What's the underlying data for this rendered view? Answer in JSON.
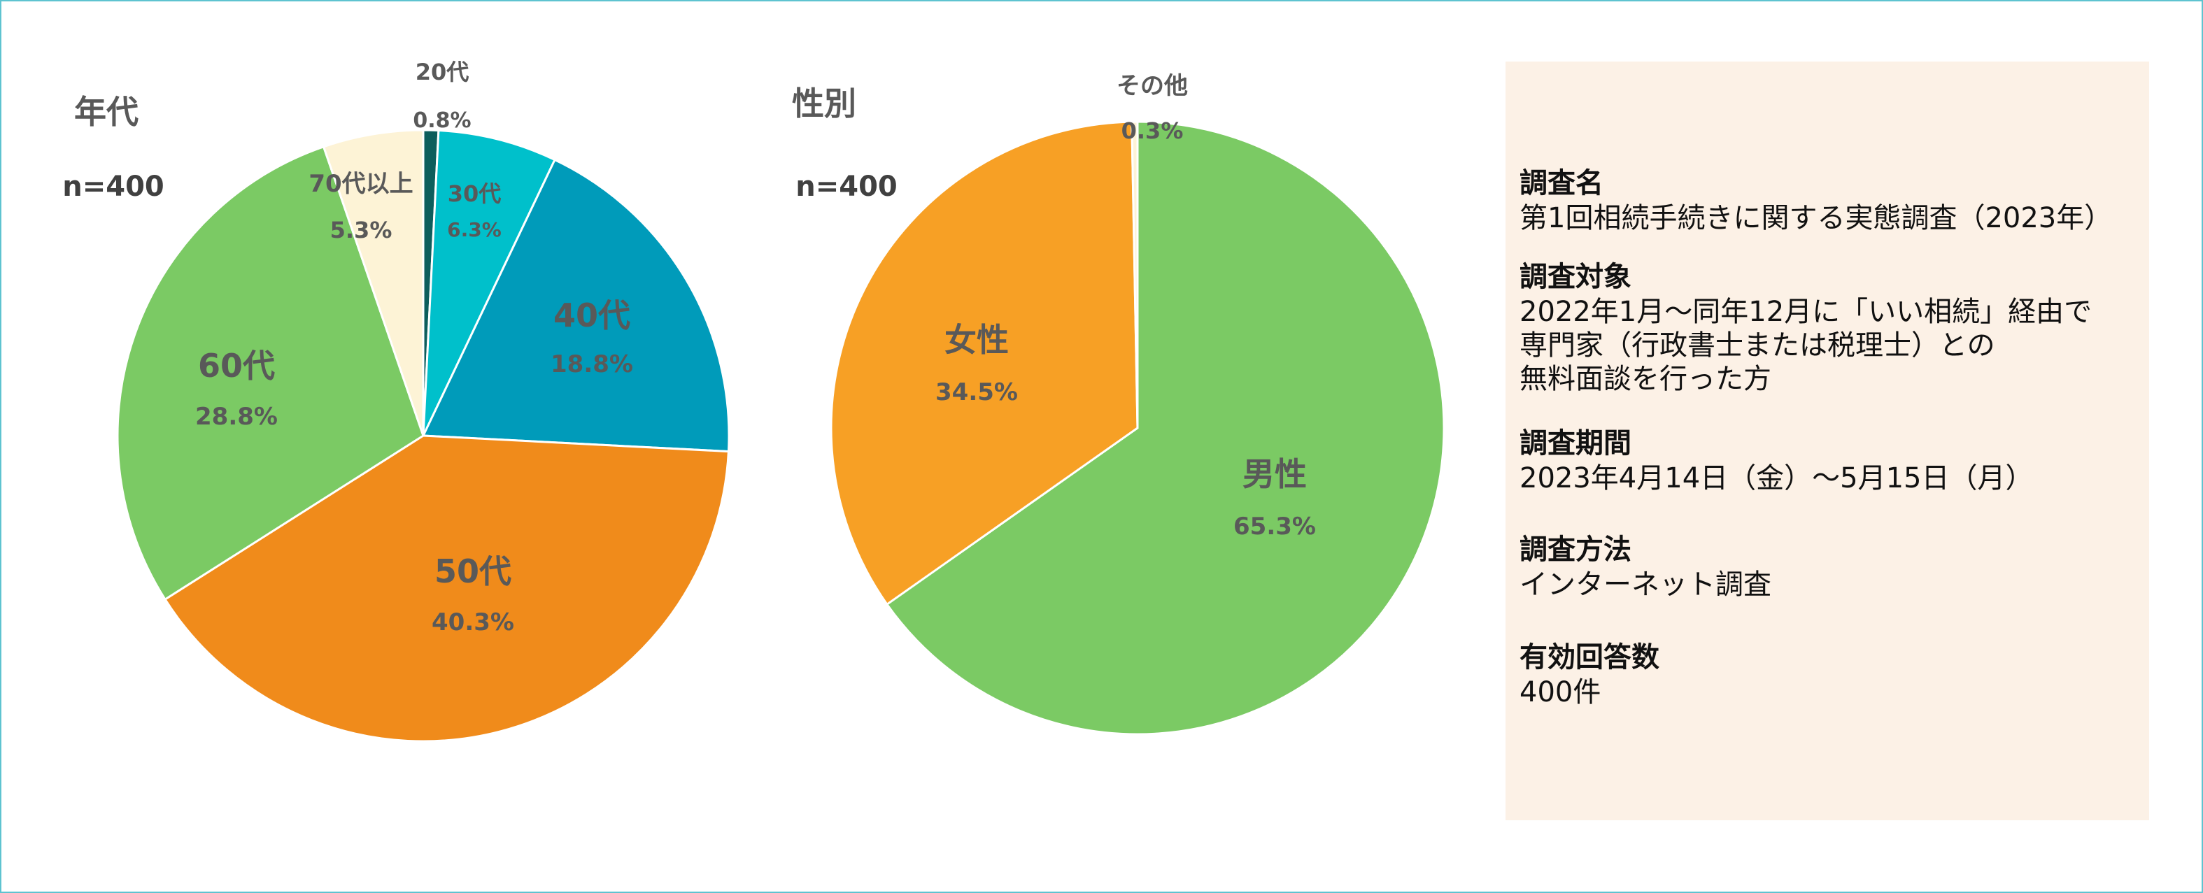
{
  "chart_data": [
    {
      "type": "pie",
      "title": "年代",
      "subtitle": "n=400",
      "categories": [
        "20代",
        "30代",
        "40代",
        "50代",
        "60代",
        "70代以上"
      ],
      "values": [
        0.8,
        6.3,
        18.8,
        40.3,
        28.8,
        5.3
      ],
      "labels": [
        "0.8%",
        "6.3%",
        "18.8%",
        "40.3%",
        "28.8%",
        "5.3%"
      ],
      "colors": [
        "#0d5e5c",
        "#00c0cb",
        "#009bba",
        "#f08b1b",
        "#7bca64",
        "#fdf3d6"
      ],
      "legend": "none"
    },
    {
      "type": "pie",
      "title": "性別",
      "subtitle": "n=400",
      "categories": [
        "男性",
        "女性",
        "その他"
      ],
      "values": [
        65.3,
        34.5,
        0.3
      ],
      "labels": [
        "65.3%",
        "34.5%",
        "0.3%"
      ],
      "colors": [
        "#7bca64",
        "#f7a025",
        "#fdf3d6"
      ],
      "legend": "none"
    }
  ],
  "info": [
    {
      "heading": "調査名",
      "body": "第1回相続手続きに関する実態調査（2023年）"
    },
    {
      "heading": "調査対象",
      "body": "2022年1月～同年12月に「いい相続」経由で\n専門家（行政書士または税理士）との\n無料面談を行った方"
    },
    {
      "heading": "調査期間",
      "body": "2023年4月14日（金）～5月15日（月）"
    },
    {
      "heading": "調査方法",
      "body": "インターネット調査"
    },
    {
      "heading": "有効回答数",
      "body": "400件"
    }
  ]
}
